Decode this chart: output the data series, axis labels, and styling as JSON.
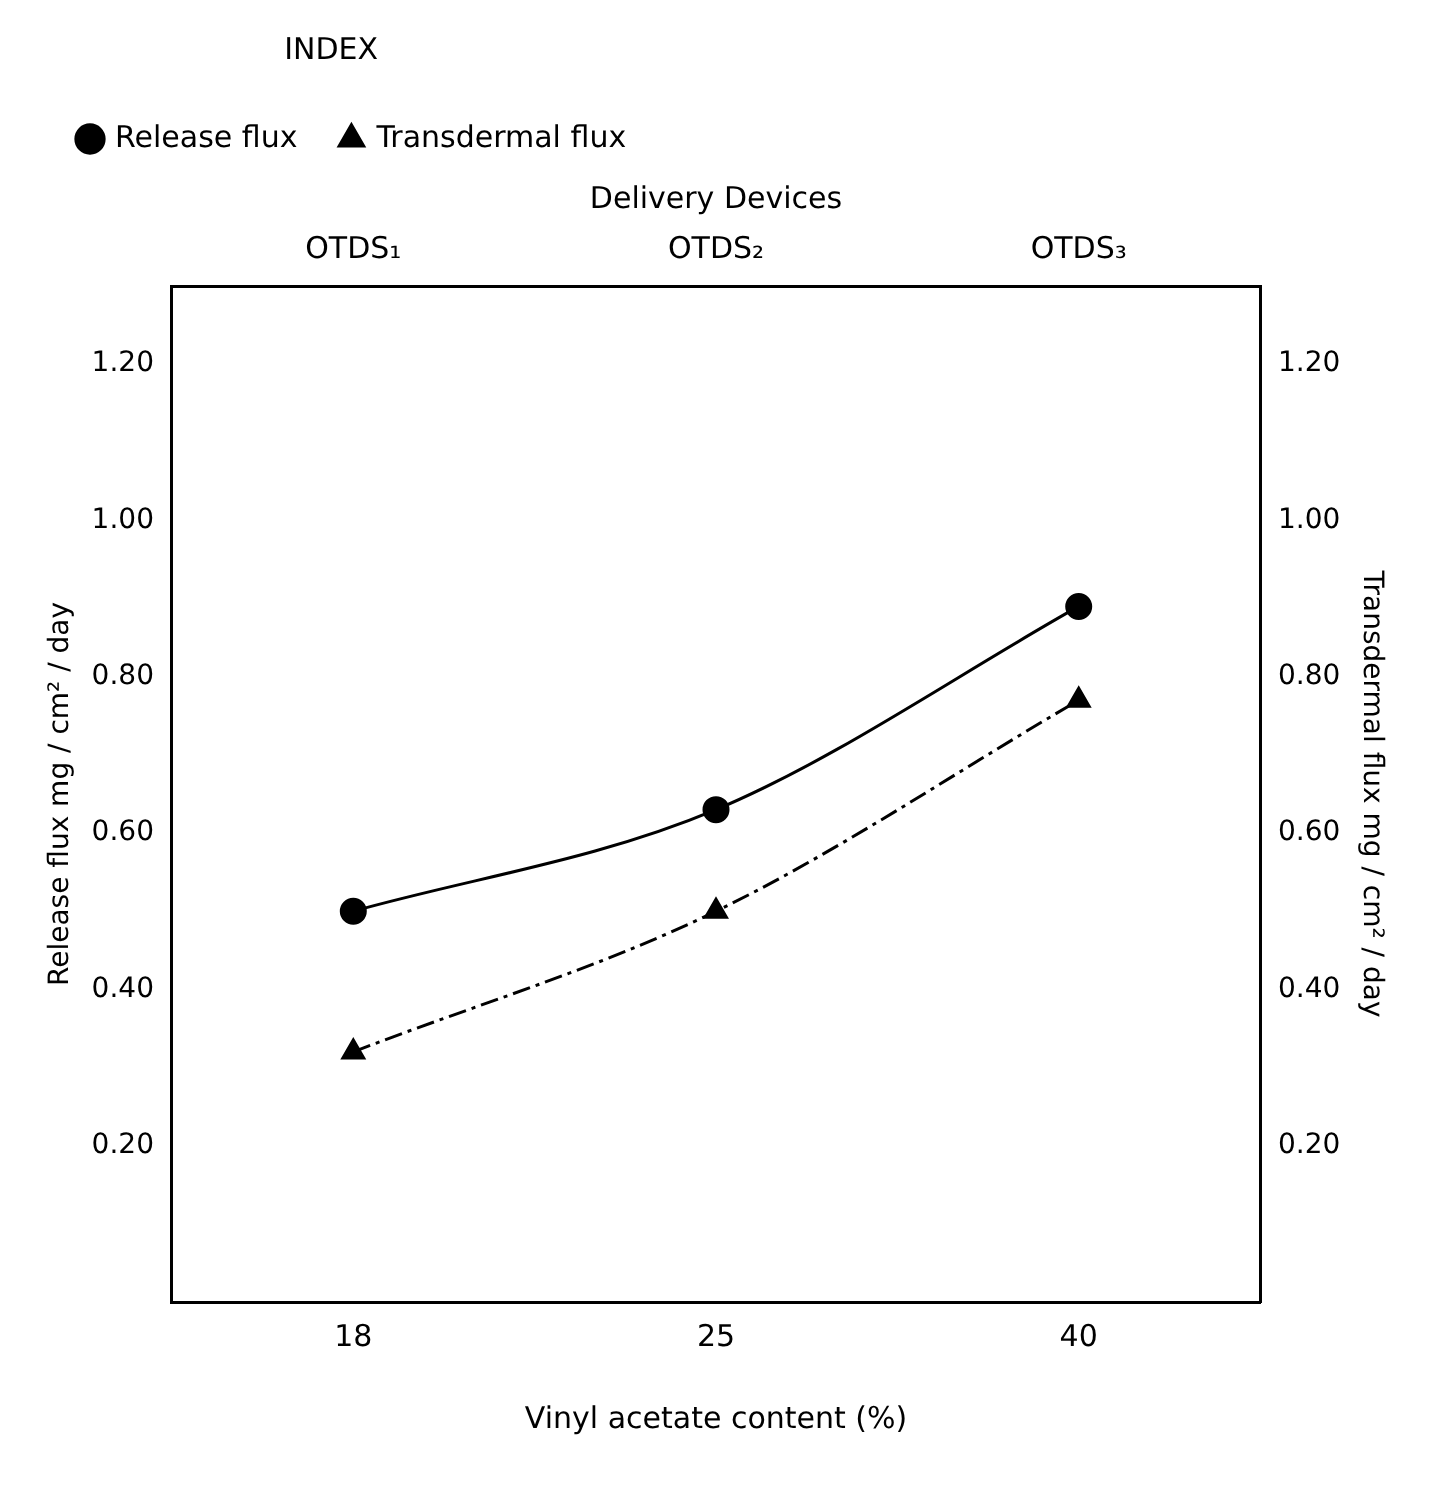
{
  "chart_data": {
    "type": "line",
    "xlabel": "Vinyl acetate content (%)",
    "x2label": "Delivery Devices",
    "ylabel": "Release flux mg / cm² / day",
    "y2label": "Transdermal flux mg / cm² / day",
    "legend_title": "INDEX",
    "legend": "top left",
    "grid": false,
    "categories": [
      "18",
      "25",
      "40"
    ],
    "annotations": [
      "OTDS₁",
      "OTDS₂",
      "OTDS₃"
    ],
    "series": [
      {
        "name": "Release flux",
        "color": "#000000",
        "values": [
          0.5,
          0.63,
          0.89
        ],
        "marker": "circle",
        "line_style": "solid"
      },
      {
        "name": "Transdermal flux",
        "color": "#000000",
        "values": [
          0.32,
          0.5,
          0.77
        ],
        "marker": "triangle",
        "line_style": "dashed"
      }
    ],
    "ylim": [
      0,
      1.3
    ],
    "yticks": [
      {
        "value": 0.2,
        "label": "0.20"
      },
      {
        "value": 0.4,
        "label": "0.40"
      },
      {
        "value": 0.6,
        "label": "0.60"
      },
      {
        "value": 0.8,
        "label": "0.80"
      },
      {
        "value": 1.0,
        "label": "1.00"
      },
      {
        "value": 1.2,
        "label": "1.20"
      }
    ],
    "y2lim": [
      0,
      1.3
    ],
    "y2ticks": [
      {
        "value": 0.2,
        "label": "0.20"
      },
      {
        "value": 0.4,
        "label": "0.40"
      },
      {
        "value": 0.6,
        "label": "0.60"
      },
      {
        "value": 0.8,
        "label": "0.80"
      },
      {
        "value": 1.0,
        "label": "1.00"
      },
      {
        "value": 1.2,
        "label": "1.20"
      }
    ]
  }
}
